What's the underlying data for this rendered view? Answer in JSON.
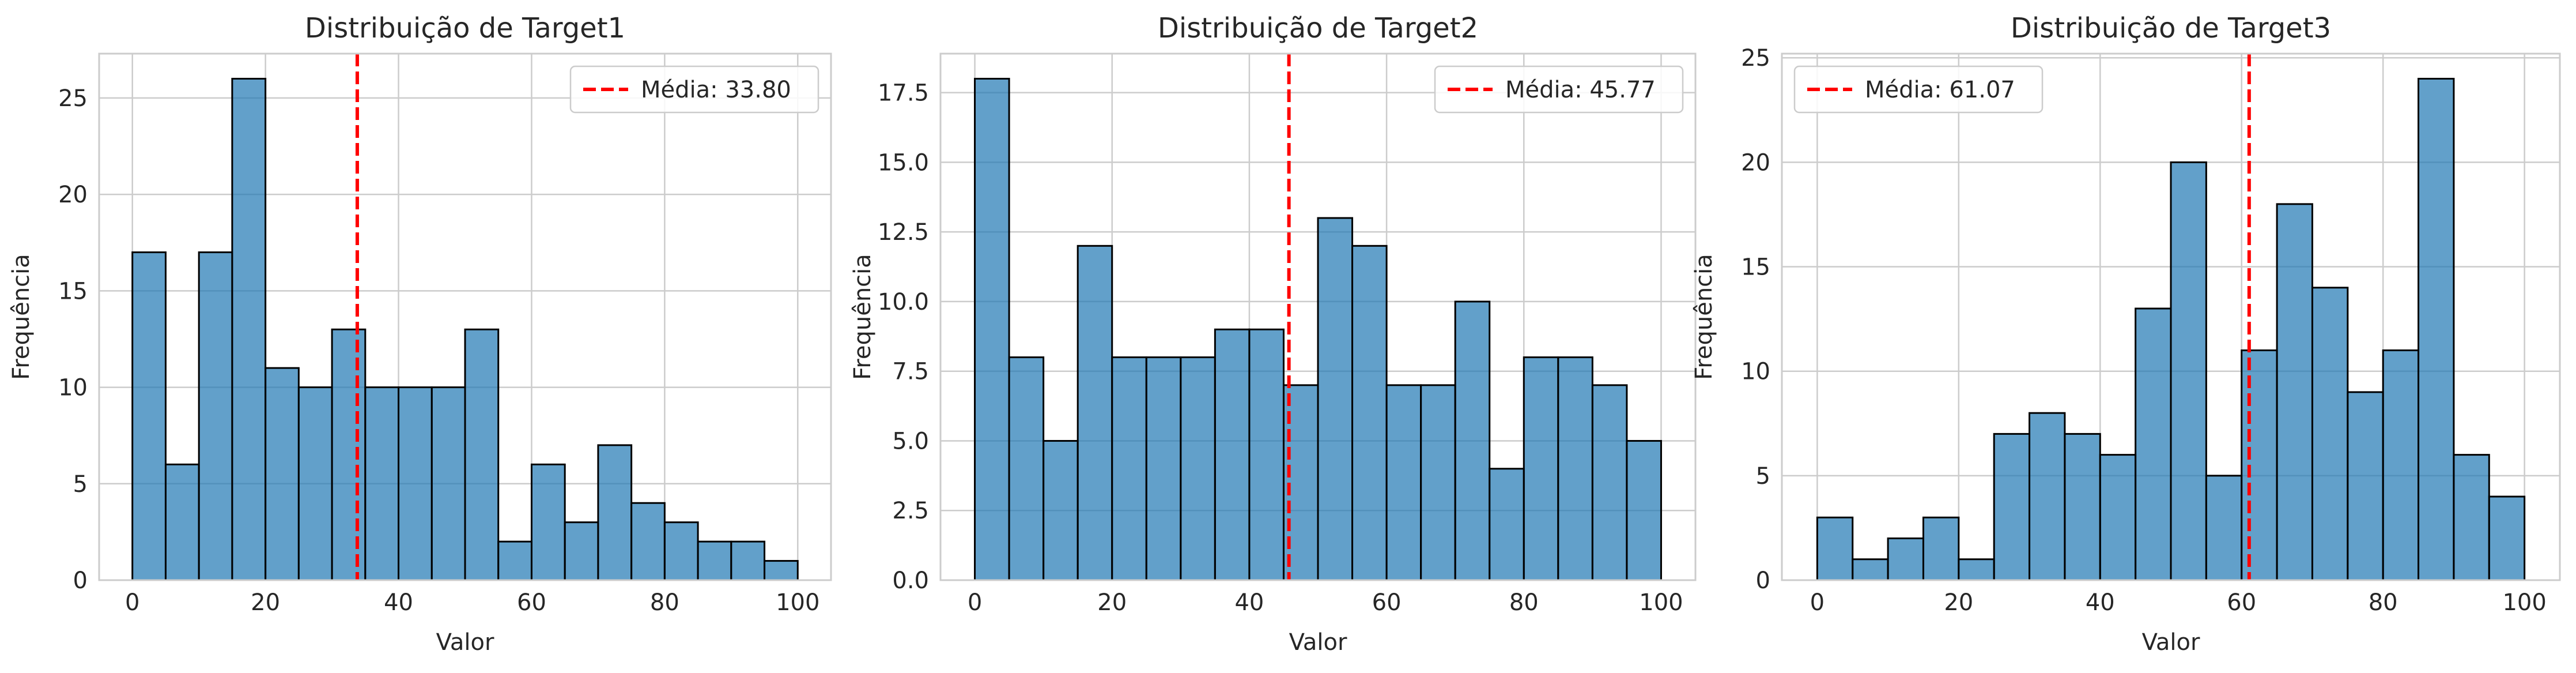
{
  "chart_data": [
    {
      "type": "bar",
      "title": "Distribuição de Target1",
      "xlabel": "Valor",
      "ylabel": "Frequência",
      "xlim": [
        -5,
        105
      ],
      "ylim": [
        0,
        27.3
      ],
      "xticks": [
        0,
        20,
        40,
        60,
        80,
        100
      ],
      "yticks": [
        0,
        5,
        10,
        15,
        20,
        25
      ],
      "ytick_labels": [
        "0",
        "5",
        "10",
        "15",
        "20",
        "25"
      ],
      "bin_width": 5,
      "bin_starts": [
        0,
        5,
        10,
        15,
        20,
        25,
        30,
        35,
        40,
        45,
        50,
        55,
        60,
        65,
        70,
        75,
        80,
        85,
        90,
        95
      ],
      "values": [
        17,
        6,
        17,
        26,
        11,
        10,
        13,
        10,
        10,
        10,
        13,
        2,
        6,
        3,
        7,
        4,
        3,
        2,
        2,
        1
      ],
      "mean": 33.8,
      "mean_label": "Média: 33.80",
      "legend_position": "upper right",
      "grid": true,
      "bar_color": "#1f77b4",
      "mean_color": "#ff0000"
    },
    {
      "type": "bar",
      "title": "Distribuição de Target2",
      "xlabel": "Valor",
      "ylabel": "Frequência",
      "xlim": [
        -5,
        105
      ],
      "ylim": [
        0,
        18.9
      ],
      "xticks": [
        0,
        20,
        40,
        60,
        80,
        100
      ],
      "yticks": [
        0,
        2.5,
        5,
        7.5,
        10,
        12.5,
        15,
        17.5
      ],
      "ytick_labels": [
        "0.0",
        "2.5",
        "5.0",
        "7.5",
        "10.0",
        "12.5",
        "15.0",
        "17.5"
      ],
      "bin_width": 5,
      "bin_starts": [
        0,
        5,
        10,
        15,
        20,
        25,
        30,
        35,
        40,
        45,
        50,
        55,
        60,
        65,
        70,
        75,
        80,
        85,
        90,
        95
      ],
      "values": [
        18,
        8,
        5,
        12,
        8,
        8,
        8,
        9,
        9,
        7,
        13,
        12,
        7,
        7,
        10,
        4,
        8,
        8,
        7,
        5
      ],
      "mean": 45.77,
      "mean_label": "Média: 45.77",
      "legend_position": "upper right",
      "grid": true,
      "bar_color": "#1f77b4",
      "mean_color": "#ff0000"
    },
    {
      "type": "bar",
      "title": "Distribuição de Target3",
      "xlabel": "Valor",
      "ylabel": "Frequência",
      "xlim": [
        -5,
        105
      ],
      "ylim": [
        0,
        25.2
      ],
      "xticks": [
        0,
        20,
        40,
        60,
        80,
        100
      ],
      "yticks": [
        0,
        5,
        10,
        15,
        20,
        25
      ],
      "ytick_labels": [
        "0",
        "5",
        "10",
        "15",
        "20",
        "25"
      ],
      "bin_width": 5,
      "bin_starts": [
        0,
        5,
        10,
        15,
        20,
        25,
        30,
        35,
        40,
        45,
        50,
        55,
        60,
        65,
        70,
        75,
        80,
        85,
        90,
        95
      ],
      "values": [
        3,
        1,
        2,
        3,
        1,
        7,
        8,
        7,
        6,
        13,
        20,
        5,
        11,
        18,
        14,
        9,
        11,
        24,
        6,
        4
      ],
      "mean": 61.07,
      "mean_label": "Média: 61.07",
      "legend_position": "upper left",
      "grid": true,
      "bar_color": "#1f77b4",
      "mean_color": "#ff0000"
    }
  ]
}
